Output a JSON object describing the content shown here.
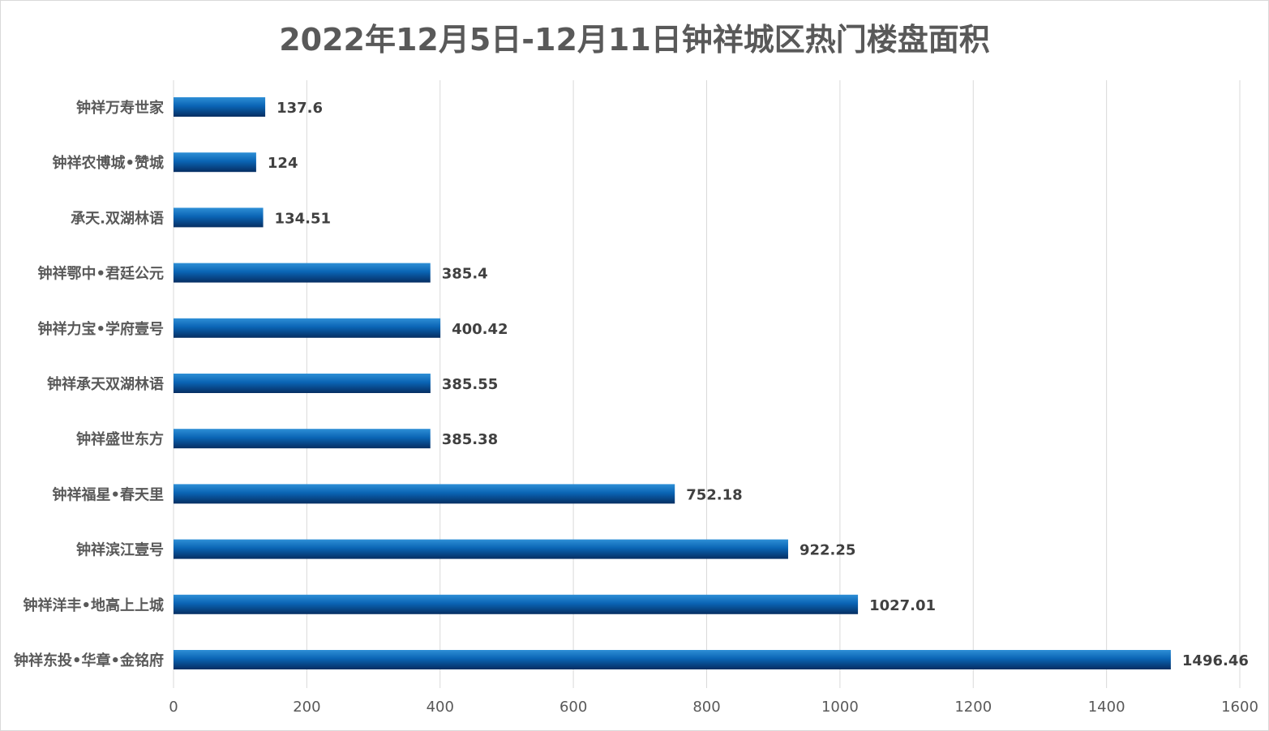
{
  "chart_data": {
    "type": "bar",
    "orientation": "horizontal",
    "title": "2022年12月5日-12月11日钟祥城区热门楼盘面积",
    "categories": [
      "钟祥万寿世家",
      "钟祥农博城•赞城",
      "承天.双湖林语",
      "钟祥鄂中•君廷公元",
      "钟祥力宝•学府壹号",
      "钟祥承天双湖林语",
      "钟祥盛世东方",
      "钟祥福星•春天里",
      "钟祥滨江壹号",
      "钟祥洋丰•地高上上城",
      "钟祥东投•华章•金铭府"
    ],
    "values": [
      137.6,
      124,
      134.51,
      385.4,
      400.42,
      385.55,
      385.38,
      752.18,
      922.25,
      1027.01,
      1496.46
    ],
    "value_labels": [
      "137.6",
      "124",
      "134.51",
      "385.4",
      "400.42",
      "385.55",
      "385.38",
      "752.18",
      "922.25",
      "1027.01",
      "1496.46"
    ],
    "xlim": [
      0,
      1600
    ],
    "xticks": [
      0,
      200,
      400,
      600,
      800,
      1000,
      1200,
      1400,
      1600
    ],
    "grid": true,
    "legend": "none",
    "colors": {
      "bar_top": "#2e8fd6",
      "bar_mid": "#0a64b4",
      "bar_bottom": "#062e62",
      "grid": "#d9d9d9"
    }
  }
}
